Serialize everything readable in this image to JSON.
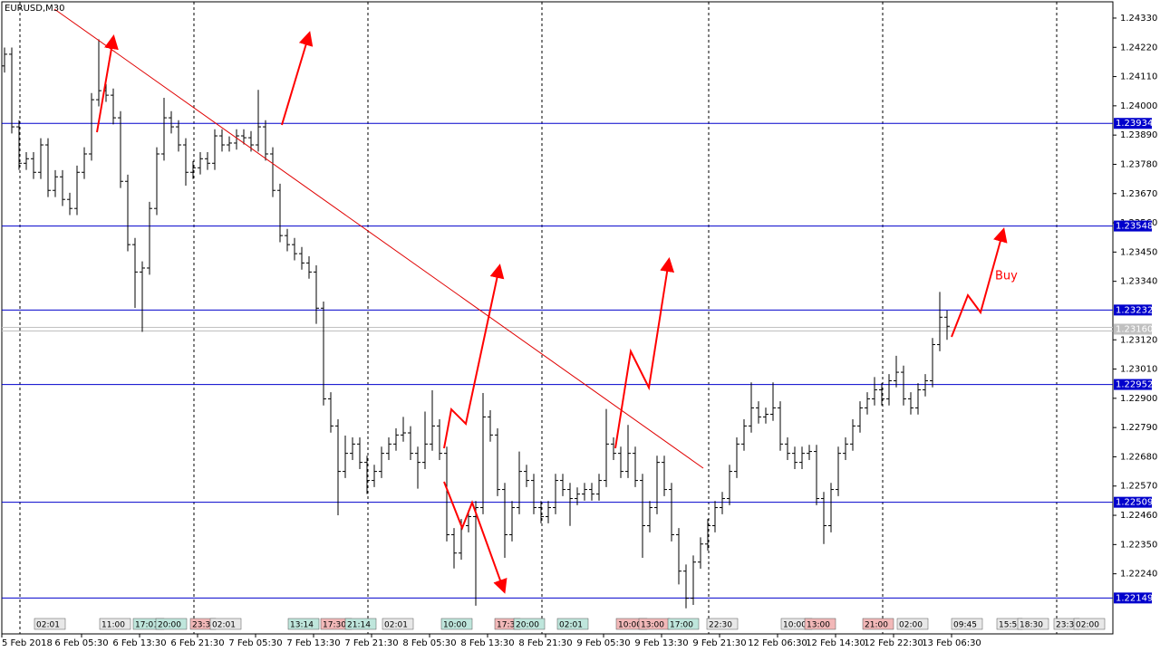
{
  "chart_data": {
    "type": "ohlc",
    "title": "EURUSD,M30",
    "annotation": "Buy",
    "ylim": [
      1.22014,
      1.24398
    ],
    "yticks": [
      {
        "value": 1.2433,
        "label": "1.24330"
      },
      {
        "value": 1.2422,
        "label": "1.24220"
      },
      {
        "value": 1.2411,
        "label": "1.24110"
      },
      {
        "value": 1.24,
        "label": "1.24000"
      },
      {
        "value": 1.2389,
        "label": "1.23890"
      },
      {
        "value": 1.2378,
        "label": "1.23780"
      },
      {
        "value": 1.2367,
        "label": "1.23670"
      },
      {
        "value": 1.2356,
        "label": "1.23560"
      },
      {
        "value": 1.2345,
        "label": "1.23450"
      },
      {
        "value": 1.2334,
        "label": "1.23340"
      },
      {
        "value": 1.2312,
        "label": "1.23120"
      },
      {
        "value": 1.2301,
        "label": "1.23010"
      },
      {
        "value": 1.229,
        "label": "1.22900"
      },
      {
        "value": 1.2279,
        "label": "1.22790"
      },
      {
        "value": 1.2268,
        "label": "1.22680"
      },
      {
        "value": 1.2257,
        "label": "1.22570"
      },
      {
        "value": 1.2246,
        "label": "1.22460"
      },
      {
        "value": 1.2235,
        "label": "1.22350"
      },
      {
        "value": 1.2224,
        "label": "1.22240"
      }
    ],
    "levels": [
      1.23934,
      1.23548,
      1.23232,
      1.22952,
      1.22509,
      1.22149
    ],
    "level_color": "#0000cc",
    "current_price": {
      "value": 1.2316,
      "label": "1.23160"
    },
    "bar_color": "#000000",
    "time_labels": [
      "5 Feb 2018",
      "6 Feb 05:30",
      "6 Feb 13:30",
      "6 Feb 21:30",
      "7 Feb 05:30",
      "7 Feb 13:30",
      "7 Feb 21:30",
      "8 Feb 05:30",
      "8 Feb 13:30",
      "8 Feb 21:30",
      "9 Feb 05:30",
      "9 Feb 13:30",
      "9 Feb 21:30",
      "12 Feb 06:30",
      "12 Feb 14:30",
      "12 Feb 22:30",
      "13 Feb 06:30"
    ],
    "session_labels": [
      {
        "label": "02:01",
        "color": "#e8e8e8"
      },
      {
        "label": "11:00",
        "color": "#e8e8e8"
      },
      {
        "label": "17:01",
        "color": "#bfe6dc"
      },
      {
        "label": "20:00",
        "color": "#bfe6dc"
      },
      {
        "label": "23:3",
        "color": "#f2b8b8"
      },
      {
        "label": "02:01",
        "color": "#e8e8e8"
      },
      {
        "label": "13:14",
        "color": "#bfe6dc"
      },
      {
        "label": "17:30",
        "color": "#f2b8b8"
      },
      {
        "label": "21:14",
        "color": "#bfe6dc"
      },
      {
        "label": "02:01",
        "color": "#e8e8e8"
      },
      {
        "label": "10:00",
        "color": "#bfe6dc"
      },
      {
        "label": "17:3",
        "color": "#f2b8b8"
      },
      {
        "label": "20:00",
        "color": "#bfe6dc"
      },
      {
        "label": "02:01",
        "color": "#bfe6dc"
      },
      {
        "label": "10:00",
        "color": "#f2b8b8"
      },
      {
        "label": "13:00",
        "color": "#f2b8b8"
      },
      {
        "label": "17:00",
        "color": "#bfe6dc"
      },
      {
        "label": "22:30",
        "color": "#e8e8e8"
      },
      {
        "label": "10:00",
        "color": "#e8e8e8"
      },
      {
        "label": "13:00",
        "color": "#f2b8b8"
      },
      {
        "label": "21:00",
        "color": "#f2b8b8"
      },
      {
        "label": "02:00",
        "color": "#e8e8e8"
      },
      {
        "label": "09:45",
        "color": "#e8e8e8"
      },
      {
        "label": "15:5",
        "color": "#e8e8e8"
      },
      {
        "label": "18:30",
        "color": "#e8e8e8"
      },
      {
        "label": "23:3",
        "color": "#e8e8e8"
      },
      {
        "label": "02:00",
        "color": "#e8e8e8"
      }
    ],
    "bars": {
      "open": [
        1.2415,
        1.24194,
        1.23921,
        1.23784,
        1.23801,
        1.2375,
        1.23853,
        1.23682,
        1.23733,
        1.23648,
        1.23614,
        1.2375,
        1.23819,
        1.24023,
        1.24057,
        1.2404,
        1.23955,
        1.23716,
        1.23478,
        1.23375,
        1.2339,
        1.23614,
        1.23819,
        1.23955,
        1.23921,
        1.23853,
        1.2375,
        1.23767,
        1.23801,
        1.23784,
        1.23887,
        1.23853,
        1.2386,
        1.23887,
        1.2388,
        1.23853,
        1.23921,
        1.23819,
        1.23682,
        1.23512,
        1.23478,
        1.23444,
        1.23409,
        1.23375,
        1.23239,
        1.22898,
        1.22796,
        1.22625,
        1.22693,
        1.22728,
        1.22659,
        1.22591,
        1.22625,
        1.22693,
        1.22728,
        1.22762,
        1.2277,
        1.22693,
        1.22659,
        1.22728,
        1.22796,
        1.22693,
        1.22387,
        1.22318,
        1.22421,
        1.22455,
        1.22489,
        1.2283,
        1.22762,
        1.22557,
        1.22387,
        1.22489,
        1.22625,
        1.22591,
        1.22489,
        1.22455,
        1.22489,
        1.22591,
        1.22557,
        1.22523,
        1.2254,
        1.22557,
        1.2254,
        1.22591,
        1.22728,
        1.22693,
        1.22625,
        1.22693,
        1.22591,
        1.22421,
        1.22489,
        1.22659,
        1.22557,
        1.22387,
        1.2225,
        1.22148,
        1.22284,
        1.22352,
        1.22421,
        1.22489,
        1.22523,
        1.22625,
        1.22728,
        1.22796,
        1.22864,
        1.2283,
        1.2284,
        1.22864,
        1.22728,
        1.22693,
        1.22659,
        1.22693,
        1.227,
        1.22523,
        1.22421,
        1.22557,
        1.22693,
        1.22728,
        1.22796,
        1.22864,
        1.22898,
        1.22932,
        1.22898,
        1.22966,
        1.22998,
        1.22898,
        1.22864,
        1.22932,
        1.22966,
        1.23102,
        1.23205
      ],
      "high": [
        1.24219,
        1.24219,
        1.23946,
        1.23826,
        1.23826,
        1.23878,
        1.23878,
        1.23758,
        1.23758,
        1.23673,
        1.23775,
        1.23844,
        1.24048,
        1.2425,
        1.24082,
        1.24065,
        1.2398,
        1.23741,
        1.23503,
        1.23415,
        1.23639,
        1.23844,
        1.2403,
        1.2398,
        1.23946,
        1.23878,
        1.23792,
        1.23826,
        1.23826,
        1.23912,
        1.23912,
        1.23885,
        1.23912,
        1.23912,
        1.23905,
        1.2406,
        1.23946,
        1.23844,
        1.23707,
        1.23537,
        1.23503,
        1.23469,
        1.23434,
        1.234,
        1.23264,
        1.22923,
        1.22821,
        1.2276,
        1.22753,
        1.22753,
        1.22684,
        1.2265,
        1.22718,
        1.22753,
        1.22787,
        1.2283,
        1.22795,
        1.22718,
        1.2285,
        1.2293,
        1.22821,
        1.22718,
        1.22412,
        1.22446,
        1.2248,
        1.22514,
        1.2292,
        1.22855,
        1.22787,
        1.22582,
        1.22514,
        1.227,
        1.2265,
        1.22616,
        1.22514,
        1.22514,
        1.22616,
        1.22616,
        1.22582,
        1.22565,
        1.22582,
        1.22582,
        1.22616,
        1.2286,
        1.22753,
        1.22718,
        1.228,
        1.22718,
        1.22616,
        1.22514,
        1.22684,
        1.22684,
        1.22582,
        1.22412,
        1.22275,
        1.22309,
        1.22377,
        1.22446,
        1.22514,
        1.22548,
        1.2265,
        1.22753,
        1.22821,
        1.2296,
        1.22889,
        1.22865,
        1.2296,
        1.22889,
        1.22753,
        1.22718,
        1.22718,
        1.22725,
        1.22725,
        1.22548,
        1.22582,
        1.22718,
        1.22753,
        1.22821,
        1.22889,
        1.22923,
        1.2298,
        1.22957,
        1.22991,
        1.2306,
        1.23023,
        1.22923,
        1.22957,
        1.22991,
        1.23127,
        1.233,
        1.2323
      ],
      "low": [
        1.24125,
        1.23896,
        1.23759,
        1.23759,
        1.23725,
        1.23725,
        1.23657,
        1.23657,
        1.23623,
        1.23589,
        1.23589,
        1.23725,
        1.23794,
        1.23998,
        1.24015,
        1.2393,
        1.23691,
        1.23453,
        1.2324,
        1.2315,
        1.23365,
        1.23589,
        1.23794,
        1.23896,
        1.23828,
        1.237,
        1.23725,
        1.23742,
        1.23759,
        1.23759,
        1.23828,
        1.23828,
        1.23835,
        1.23855,
        1.23828,
        1.23828,
        1.23794,
        1.23657,
        1.23487,
        1.23453,
        1.23419,
        1.23384,
        1.2335,
        1.2318,
        1.22873,
        1.22771,
        1.2246,
        1.226,
        1.22668,
        1.22634,
        1.2254,
        1.22566,
        1.226,
        1.22668,
        1.22703,
        1.22737,
        1.22668,
        1.2256,
        1.22634,
        1.22703,
        1.22668,
        1.22362,
        1.2226,
        1.22293,
        1.22396,
        1.2212,
        1.22464,
        1.22737,
        1.22532,
        1.223,
        1.22362,
        1.22464,
        1.22566,
        1.22464,
        1.2243,
        1.2243,
        1.22464,
        1.22532,
        1.2242,
        1.22498,
        1.22515,
        1.22515,
        1.22515,
        1.22566,
        1.22668,
        1.226,
        1.226,
        1.22566,
        1.223,
        1.22396,
        1.22464,
        1.22532,
        1.22362,
        1.222,
        1.2211,
        1.22123,
        1.22259,
        1.22327,
        1.22396,
        1.22464,
        1.22498,
        1.226,
        1.22703,
        1.22771,
        1.22805,
        1.22805,
        1.22815,
        1.22703,
        1.22668,
        1.22634,
        1.22634,
        1.22668,
        1.22498,
        1.22352,
        1.22396,
        1.22532,
        1.22668,
        1.22703,
        1.22771,
        1.22839,
        1.22873,
        1.22873,
        1.22873,
        1.22941,
        1.22873,
        1.22839,
        1.22839,
        1.22907,
        1.22941,
        1.23077,
        1.2312
      ],
      "close": [
        1.24194,
        1.23921,
        1.23784,
        1.23801,
        1.2375,
        1.23853,
        1.23682,
        1.23733,
        1.23648,
        1.23614,
        1.2375,
        1.23819,
        1.24023,
        1.24057,
        1.2404,
        1.23955,
        1.23716,
        1.23478,
        1.23375,
        1.2339,
        1.23614,
        1.23819,
        1.23955,
        1.23921,
        1.23853,
        1.2375,
        1.23767,
        1.23801,
        1.23784,
        1.23887,
        1.23853,
        1.2386,
        1.23887,
        1.2388,
        1.23853,
        1.23921,
        1.23819,
        1.23682,
        1.23512,
        1.23478,
        1.23444,
        1.23409,
        1.23375,
        1.23239,
        1.22898,
        1.22796,
        1.22625,
        1.22693,
        1.22728,
        1.22659,
        1.22591,
        1.22625,
        1.22693,
        1.22728,
        1.22762,
        1.2277,
        1.22693,
        1.22659,
        1.22728,
        1.22796,
        1.22693,
        1.22387,
        1.22318,
        1.22421,
        1.22455,
        1.22489,
        1.2283,
        1.22762,
        1.22557,
        1.22387,
        1.22489,
        1.22625,
        1.22591,
        1.22489,
        1.22455,
        1.22489,
        1.22591,
        1.22557,
        1.22523,
        1.2254,
        1.22557,
        1.2254,
        1.22591,
        1.22728,
        1.22693,
        1.22625,
        1.22693,
        1.22591,
        1.22421,
        1.22489,
        1.22659,
        1.22557,
        1.22387,
        1.2225,
        1.22148,
        1.22284,
        1.22352,
        1.22421,
        1.22489,
        1.22523,
        1.22625,
        1.22728,
        1.22796,
        1.22864,
        1.2283,
        1.2284,
        1.22864,
        1.22728,
        1.22693,
        1.22659,
        1.22693,
        1.227,
        1.22523,
        1.22421,
        1.22557,
        1.22693,
        1.22728,
        1.22796,
        1.22864,
        1.22898,
        1.22932,
        1.22898,
        1.22966,
        1.22998,
        1.22898,
        1.22864,
        1.22932,
        1.22966,
        1.23102,
        1.23205,
        1.23171
      ]
    }
  }
}
